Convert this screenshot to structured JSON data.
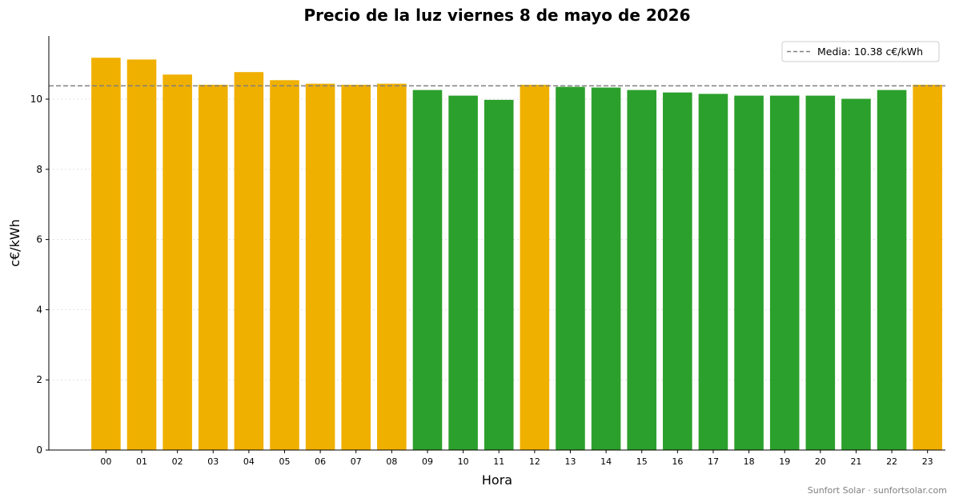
{
  "chart_data": {
    "type": "bar",
    "title": "Precio de la luz viernes 8 de mayo de 2026",
    "xlabel": "Hora",
    "ylabel": "c€/kWh",
    "ylim": [
      0,
      11.8
    ],
    "yticks": [
      0,
      2,
      4,
      6,
      8,
      10
    ],
    "grid": "horizontal dotted",
    "categories": [
      "00",
      "01",
      "02",
      "03",
      "04",
      "05",
      "06",
      "07",
      "08",
      "09",
      "10",
      "11",
      "12",
      "13",
      "14",
      "15",
      "16",
      "17",
      "18",
      "19",
      "20",
      "21",
      "22",
      "23"
    ],
    "values": [
      11.18,
      11.13,
      10.7,
      10.41,
      10.77,
      10.54,
      10.44,
      10.41,
      10.44,
      10.26,
      10.1,
      9.98,
      10.41,
      10.35,
      10.33,
      10.26,
      10.19,
      10.15,
      10.1,
      10.1,
      10.1,
      10.01,
      10.26,
      10.41
    ],
    "colors": [
      "#f0b000",
      "#f0b000",
      "#f0b000",
      "#f0b000",
      "#f0b000",
      "#f0b000",
      "#f0b000",
      "#f0b000",
      "#f0b000",
      "#2ca02c",
      "#2ca02c",
      "#2ca02c",
      "#f0b000",
      "#2ca02c",
      "#2ca02c",
      "#2ca02c",
      "#2ca02c",
      "#2ca02c",
      "#2ca02c",
      "#2ca02c",
      "#2ca02c",
      "#2ca02c",
      "#2ca02c",
      "#f0b000"
    ],
    "mean": {
      "value": 10.38,
      "label": "Media: 10.38 c€/kWh",
      "color": "#808080",
      "style": "dashed"
    },
    "legend_position": "top-right"
  },
  "footer": "Sunfort Solar · sunfortsolar.com"
}
